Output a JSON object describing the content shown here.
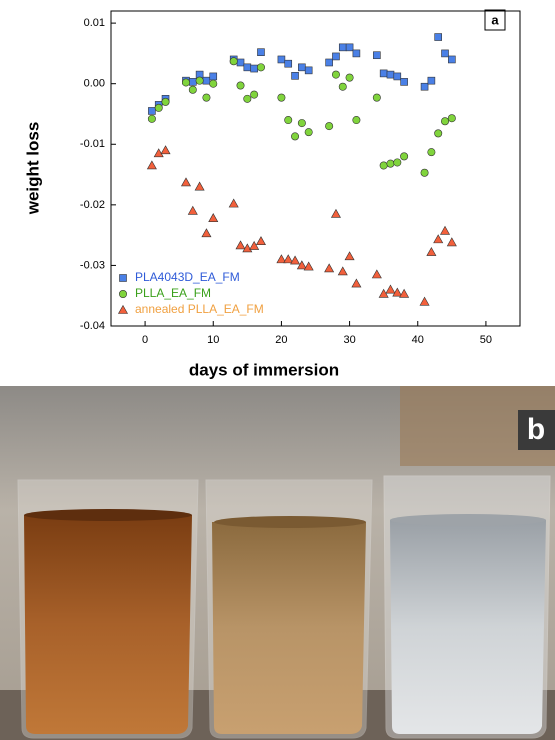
{
  "chart_data": {
    "type": "scatter",
    "x_label": "days of immersion",
    "y_label": "weight loss",
    "panel_label": "a",
    "xlim": [
      -5,
      55
    ],
    "xticks": [
      0,
      10,
      20,
      30,
      40,
      50
    ],
    "ylim": [
      -0.04,
      0.012
    ],
    "yticks": [
      0.01,
      {
        "value": 0,
        "label": "0.00"
      },
      -0.01,
      -0.02,
      -0.03,
      -0.04
    ],
    "legend": "lower left",
    "x": [
      1,
      2,
      3,
      6,
      7,
      8,
      9,
      10,
      13,
      14,
      15,
      16,
      17,
      20,
      21,
      22,
      23,
      24,
      27,
      28,
      29,
      30,
      31,
      34,
      35,
      36,
      37,
      38,
      41,
      42,
      43,
      44,
      45
    ],
    "series": [
      {
        "name": "PLA4043D_EA_FM",
        "color": "#4a80e6",
        "label_color": "#2f5bd8",
        "marker": "square",
        "values": [
          -0.0045,
          -0.0035,
          -0.0025,
          0.0005,
          0.0003,
          0.0015,
          0.0005,
          0.0012,
          0.004,
          0.0035,
          0.0027,
          0.0025,
          0.0052,
          0.004,
          0.0033,
          0.0013,
          0.0027,
          0.0022,
          0.0035,
          0.0045,
          0.006,
          0.006,
          0.005,
          0.0047,
          0.0017,
          0.0015,
          0.0012,
          0.0003,
          -0.0005,
          0.0005,
          0.0077,
          0.005,
          0.004
        ]
      },
      {
        "name": "PLLA_EA_FM",
        "color": "#80d43c",
        "label_color": "#3aa01a",
        "marker": "circle",
        "values": [
          -0.0058,
          -0.004,
          -0.003,
          0.0002,
          -0.001,
          0.0005,
          -0.0023,
          0.0,
          0.0037,
          -0.0003,
          -0.0025,
          -0.0018,
          0.0027,
          -0.0023,
          -0.006,
          -0.0087,
          -0.0065,
          -0.008,
          -0.007,
          0.0015,
          -0.0005,
          0.001,
          -0.006,
          -0.0023,
          -0.0135,
          -0.0132,
          -0.013,
          -0.012,
          -0.0147,
          -0.0113,
          -0.0082,
          -0.0062,
          -0.0057
        ]
      },
      {
        "name": "annealed PLLA_EA_FM",
        "color": "#f2603c",
        "label_color": "#f0a040",
        "marker": "triangle",
        "values": [
          -0.0135,
          -0.0115,
          -0.011,
          -0.0163,
          -0.021,
          -0.017,
          -0.0247,
          -0.0222,
          -0.0198,
          -0.0267,
          -0.0272,
          -0.0268,
          -0.026,
          -0.029,
          -0.029,
          -0.0292,
          -0.03,
          -0.0302,
          -0.0305,
          -0.0215,
          -0.031,
          -0.0285,
          -0.033,
          -0.0315,
          -0.0347,
          -0.034,
          -0.0345,
          -0.0347,
          -0.036,
          -0.0278,
          -0.0257,
          -0.0243,
          -0.0262
        ]
      }
    ]
  },
  "photo": {
    "panel_label": "b"
  }
}
